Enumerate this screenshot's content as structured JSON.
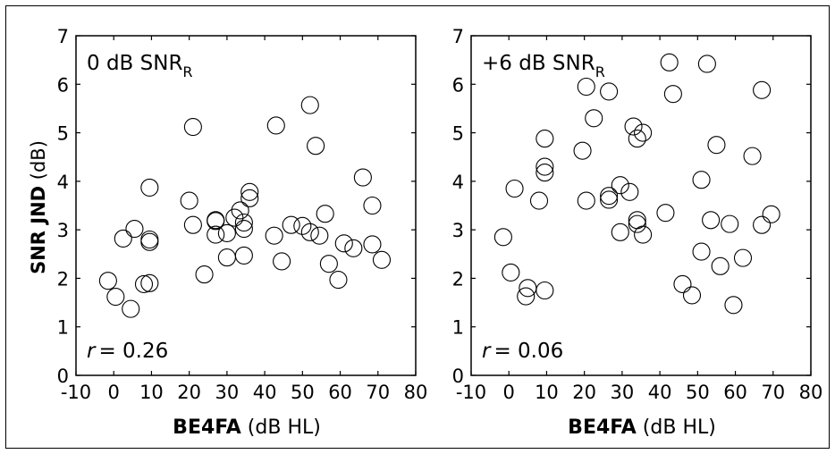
{
  "chart_data": [
    {
      "type": "scatter",
      "panel_label": "0 dB SNR",
      "panel_label_sub": "R",
      "correlation_symbol": "r",
      "correlation_value": "= 0.26",
      "xlabel_bold": "BE4FA",
      "xlabel_rest": " (dB HL)",
      "ylabel_bold": "SNR JND",
      "ylabel_rest": " (dB)",
      "xlim": [
        -10,
        80
      ],
      "ylim": [
        0,
        7
      ],
      "xticks": [
        "-10",
        "0",
        "10",
        "20",
        "30",
        "40",
        "50",
        "60",
        "70",
        "80"
      ],
      "yticks": [
        "0",
        "1",
        "2",
        "3",
        "4",
        "5",
        "6",
        "7"
      ],
      "grid": false,
      "marker": "open-circle",
      "points": [
        {
          "x": -1.5,
          "y": 1.95
        },
        {
          "x": 0.5,
          "y": 1.62
        },
        {
          "x": 2.5,
          "y": 2.82
        },
        {
          "x": 4.5,
          "y": 1.37
        },
        {
          "x": 5.5,
          "y": 3.02
        },
        {
          "x": 8,
          "y": 1.88
        },
        {
          "x": 9.5,
          "y": 2.8
        },
        {
          "x": 9.5,
          "y": 2.75
        },
        {
          "x": 9.5,
          "y": 3.87
        },
        {
          "x": 9.5,
          "y": 1.9
        },
        {
          "x": 20,
          "y": 3.6
        },
        {
          "x": 21,
          "y": 5.12
        },
        {
          "x": 21,
          "y": 3.1
        },
        {
          "x": 24,
          "y": 2.08
        },
        {
          "x": 27,
          "y": 3.2
        },
        {
          "x": 27,
          "y": 3.18
        },
        {
          "x": 27,
          "y": 2.9
        },
        {
          "x": 30,
          "y": 2.93
        },
        {
          "x": 30,
          "y": 2.43
        },
        {
          "x": 32,
          "y": 3.25
        },
        {
          "x": 33.5,
          "y": 3.4
        },
        {
          "x": 34.5,
          "y": 3.15
        },
        {
          "x": 34.5,
          "y": 3.02
        },
        {
          "x": 34.5,
          "y": 2.47
        },
        {
          "x": 36,
          "y": 3.78
        },
        {
          "x": 36,
          "y": 3.65
        },
        {
          "x": 42.5,
          "y": 2.88
        },
        {
          "x": 43,
          "y": 5.15
        },
        {
          "x": 44.5,
          "y": 2.35
        },
        {
          "x": 47,
          "y": 3.1
        },
        {
          "x": 50,
          "y": 3.08
        },
        {
          "x": 52,
          "y": 5.57
        },
        {
          "x": 52,
          "y": 2.95
        },
        {
          "x": 53.5,
          "y": 4.73
        },
        {
          "x": 54.5,
          "y": 2.88
        },
        {
          "x": 56,
          "y": 3.33
        },
        {
          "x": 57,
          "y": 2.3
        },
        {
          "x": 59.5,
          "y": 1.97
        },
        {
          "x": 61,
          "y": 2.72
        },
        {
          "x": 63.5,
          "y": 2.62
        },
        {
          "x": 66,
          "y": 4.08
        },
        {
          "x": 68.5,
          "y": 3.5
        },
        {
          "x": 68.5,
          "y": 2.7
        },
        {
          "x": 71,
          "y": 2.38
        }
      ]
    },
    {
      "type": "scatter",
      "panel_label": "+6 dB SNR",
      "panel_label_sub": "R",
      "correlation_symbol": "r",
      "correlation_value": "= 0.06",
      "xlabel_bold": "BE4FA",
      "xlabel_rest": " (dB HL)",
      "xlim": [
        -10,
        80
      ],
      "ylim": [
        0,
        7
      ],
      "xticks": [
        "-10",
        "0",
        "10",
        "20",
        "30",
        "40",
        "50",
        "60",
        "70",
        "80"
      ],
      "yticks": [
        "0",
        "1",
        "2",
        "3",
        "4",
        "5",
        "6",
        "7"
      ],
      "grid": false,
      "marker": "open-circle",
      "points": [
        {
          "x": -1.5,
          "y": 2.85
        },
        {
          "x": 0.5,
          "y": 2.12
        },
        {
          "x": 1.5,
          "y": 3.85
        },
        {
          "x": 4.5,
          "y": 1.63
        },
        {
          "x": 5,
          "y": 1.8
        },
        {
          "x": 8,
          "y": 3.6
        },
        {
          "x": 9.5,
          "y": 1.75
        },
        {
          "x": 9.5,
          "y": 4.88
        },
        {
          "x": 9.5,
          "y": 4.3
        },
        {
          "x": 9.5,
          "y": 4.18
        },
        {
          "x": 19.5,
          "y": 4.63
        },
        {
          "x": 20.5,
          "y": 5.95
        },
        {
          "x": 20.5,
          "y": 3.6
        },
        {
          "x": 22.5,
          "y": 5.3
        },
        {
          "x": 26.5,
          "y": 5.85
        },
        {
          "x": 26.5,
          "y": 3.7
        },
        {
          "x": 26.5,
          "y": 3.62
        },
        {
          "x": 29.5,
          "y": 3.92
        },
        {
          "x": 29.5,
          "y": 2.95
        },
        {
          "x": 32,
          "y": 3.78
        },
        {
          "x": 33,
          "y": 5.13
        },
        {
          "x": 34,
          "y": 4.88
        },
        {
          "x": 34,
          "y": 3.2
        },
        {
          "x": 34,
          "y": 3.12
        },
        {
          "x": 35.5,
          "y": 5.0
        },
        {
          "x": 35.5,
          "y": 2.9
        },
        {
          "x": 41.5,
          "y": 3.35
        },
        {
          "x": 42.5,
          "y": 6.45
        },
        {
          "x": 43.5,
          "y": 5.8
        },
        {
          "x": 46,
          "y": 1.88
        },
        {
          "x": 48.5,
          "y": 1.65
        },
        {
          "x": 51,
          "y": 4.03
        },
        {
          "x": 51,
          "y": 2.55
        },
        {
          "x": 52.5,
          "y": 6.42
        },
        {
          "x": 53.5,
          "y": 3.2
        },
        {
          "x": 55,
          "y": 4.75
        },
        {
          "x": 56,
          "y": 2.25
        },
        {
          "x": 58.5,
          "y": 3.12
        },
        {
          "x": 59.5,
          "y": 1.45
        },
        {
          "x": 62,
          "y": 2.42
        },
        {
          "x": 64.5,
          "y": 4.52
        },
        {
          "x": 67,
          "y": 5.88
        },
        {
          "x": 67,
          "y": 3.1
        },
        {
          "x": 69.5,
          "y": 3.32
        }
      ]
    }
  ]
}
